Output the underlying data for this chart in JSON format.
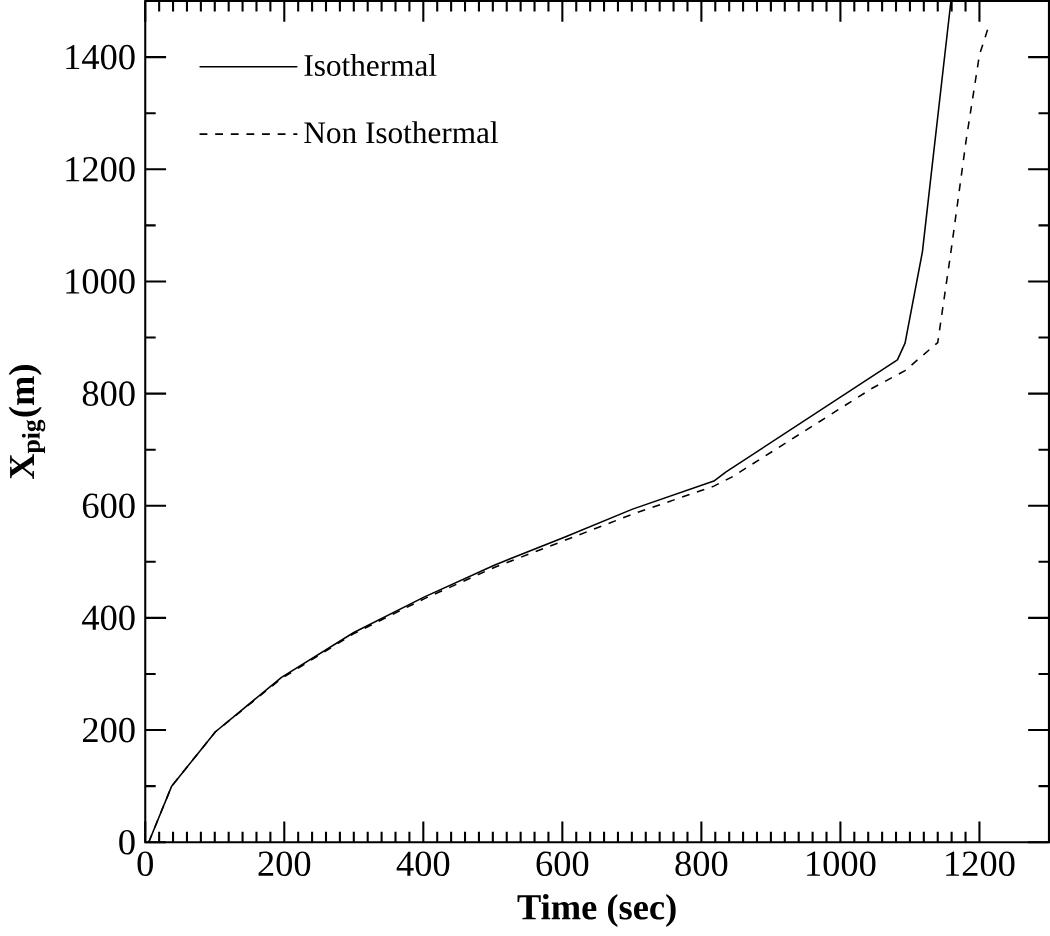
{
  "chart_data": {
    "type": "line",
    "xlabel": "Time (sec)",
    "ylabel": "X$_{pig}$(m)",
    "xlim": [
      0,
      1300
    ],
    "ylim": [
      0,
      1500
    ],
    "xticks": [
      0,
      200,
      400,
      600,
      800,
      1000,
      1200
    ],
    "yticks": [
      0,
      200,
      400,
      600,
      800,
      1000,
      1200,
      1400
    ],
    "grid": false,
    "legend": "top left",
    "marker": "none",
    "series": [
      {
        "name": "Isothermal",
        "color": "#000000",
        "line_style": "solid",
        "x": [
          5,
          38,
          101,
          196,
          300,
          401,
          502,
          603,
          701,
          818,
          835,
          1082,
          1093,
          1118,
          1134,
          1159
        ],
        "values": [
          0,
          100,
          197,
          294,
          374,
          437,
          494,
          544,
          594,
          644,
          660,
          860,
          890,
          1053,
          1228,
          1500
        ]
      },
      {
        "name": "Non Isothermal",
        "color": "#000000",
        "line_style": "dashed",
        "x": [
          5,
          38,
          101,
          196,
          300,
          401,
          502,
          603,
          701,
          818,
          845,
          1045,
          1093,
          1140,
          1159,
          1181,
          1200,
          1212
        ],
        "values": [
          0,
          100,
          197,
          292,
          372,
          434,
          490,
          538,
          585,
          635,
          652,
          809,
          841,
          891,
          1053,
          1253,
          1404,
          1450
        ]
      }
    ]
  }
}
